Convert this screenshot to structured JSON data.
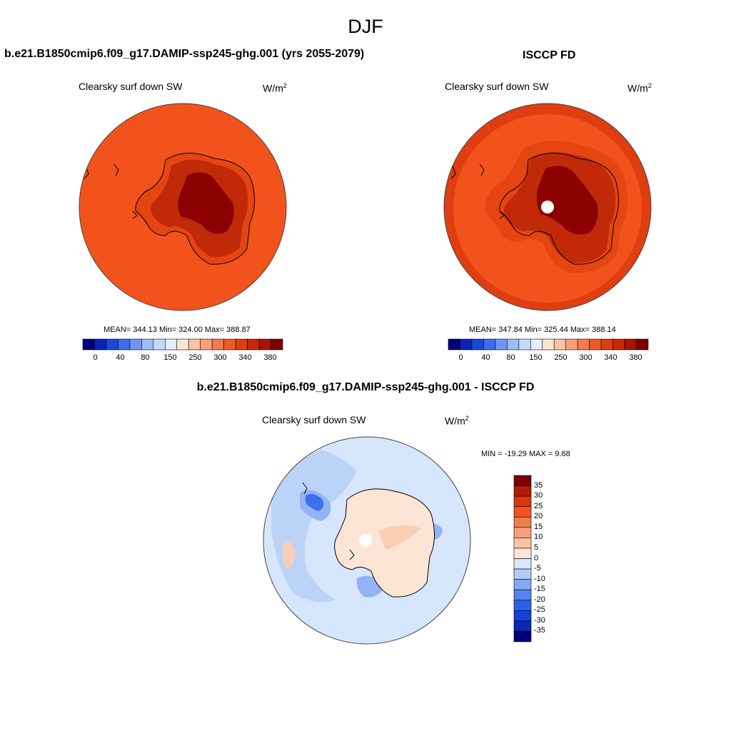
{
  "title": "DJF",
  "panels": [
    {
      "id": "model",
      "heading": "b.e21.B1850cmip6.f09_g17.DAMIP-ssp245-ghg.001 (yrs 2055-2079)",
      "variable": "Clearsky surf down SW",
      "units_base": "W/m",
      "units_exp": "2",
      "stats": "MEAN= 344.13  Min= 324.00  Max= 388.87"
    },
    {
      "id": "obs",
      "heading": "ISCCP FD",
      "variable": "Clearsky surf down SW",
      "units_base": "W/m",
      "units_exp": "2",
      "stats": "MEAN= 347.84  Min= 325.44  Max= 388.14"
    },
    {
      "id": "diff",
      "heading": "b.e21.B1850cmip6.f09_g17.DAMIP-ssp245-ghg.001 - ISCCP FD",
      "variable": "Clearsky surf down SW",
      "units_base": "W/m",
      "units_exp": "2",
      "stats": "MIN = -19.29 MAX =   9.68"
    }
  ],
  "colorbar_abs": {
    "colors": [
      "#00007a",
      "#0a22b8",
      "#1948dd",
      "#3a6ef0",
      "#6d96f5",
      "#9ebdf7",
      "#c6d9fa",
      "#e4eefc",
      "#fde3d2",
      "#fbc3a6",
      "#f7a07a",
      "#f47a4f",
      "#ef5a28",
      "#e13e10",
      "#c62806",
      "#a81303",
      "#7d0000"
    ],
    "ticks": [
      "0",
      "40",
      "80",
      "150",
      "250",
      "300",
      "340",
      "380"
    ]
  },
  "colorbar_diff": {
    "colors": [
      "#7d0000",
      "#b01c04",
      "#d8360c",
      "#f2531c",
      "#f47a4f",
      "#f7a07a",
      "#fbc3a6",
      "#fde6d7",
      "#d9e6fb",
      "#b2ccf8",
      "#86a9f4",
      "#5784ef",
      "#2d5fe8",
      "#1442d7",
      "#0c27b3",
      "#00007a"
    ],
    "ticks": [
      "35",
      "30",
      "25",
      "20",
      "15",
      "10",
      "5",
      "0",
      "-5",
      "-10",
      "-15",
      "-20",
      "-25",
      "-30",
      "-35"
    ]
  },
  "map_colors": {
    "ocean_model": "#f2531c",
    "ring_obs": "#e03e10",
    "coast_band": "#e54510",
    "plateau_mid": "#c02a08",
    "plateau_high": "#8b0000",
    "diff_base": "#d6e6fc",
    "diff_mid": "#bcd3f8",
    "diff_neg": "#93b3f4",
    "diff_strong": "#3d6ff0",
    "diff_pos": "#fde5d6",
    "diff_pos2": "#fbcdb2",
    "coastline": "#000000"
  }
}
